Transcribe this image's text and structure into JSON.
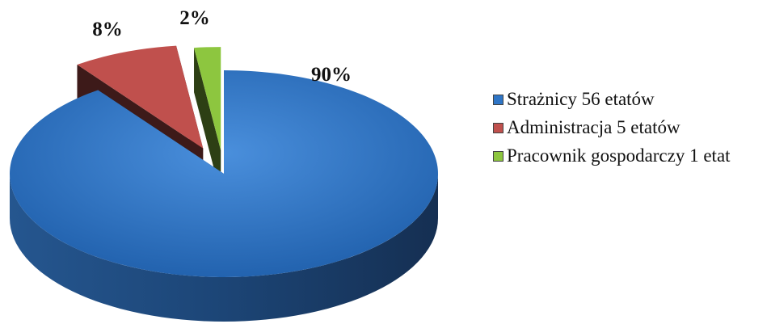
{
  "chart_data": {
    "type": "pie",
    "style": "3d-exploded",
    "slices": [
      {
        "label": "Strażnicy 56 etatów",
        "value": 90,
        "value_label": "90%",
        "color": "#2E75C6"
      },
      {
        "label": "Administracja 5 etatów",
        "value": 8,
        "value_label": "8%",
        "color": "#C0504D"
      },
      {
        "label": "Pracownik gospodarczy 1 etat",
        "value": 2,
        "value_label": "2%",
        "color": "#8DC63F"
      }
    ],
    "legend_position": "right"
  }
}
